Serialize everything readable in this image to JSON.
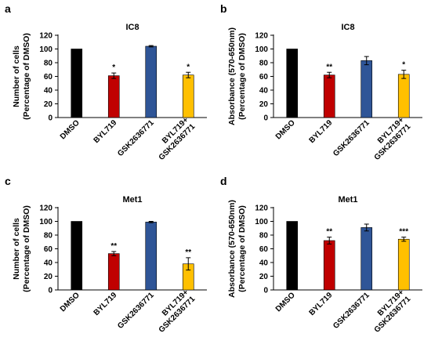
{
  "colors": {
    "dmso": "#000000",
    "byl": "#c00000",
    "gsk": "#2f5597",
    "combo": "#ffc000"
  },
  "chart_data": [
    {
      "panel_label": "a",
      "type": "bar",
      "title": "IC8",
      "ylabel": [
        "Number of cells",
        "(Percentage of DMSO)"
      ],
      "ylim": [
        0,
        120
      ],
      "yticks": [
        "0",
        "20",
        "40",
        "60",
        "80",
        "100",
        "120"
      ],
      "categories": [
        [
          "DMSO"
        ],
        [
          "BYL719"
        ],
        [
          "GSK2636771"
        ],
        [
          "BYL719+",
          "GSK2636771"
        ]
      ],
      "values": [
        100,
        61,
        104,
        62
      ],
      "errors": [
        0,
        4,
        1,
        4
      ],
      "significance": [
        "",
        "*",
        "",
        "*"
      ]
    },
    {
      "panel_label": "b",
      "type": "bar",
      "title": "IC8",
      "ylabel": [
        "Absorbance (570-650nm)",
        "(Percentage of DMSO)"
      ],
      "ylim": [
        0,
        120
      ],
      "yticks": [
        "0",
        "20",
        "40",
        "60",
        "80",
        "100",
        "120"
      ],
      "categories": [
        [
          "DMSO"
        ],
        [
          "BYL719"
        ],
        [
          "GSK2636771"
        ],
        [
          "BYL719+",
          "GSK2636771"
        ]
      ],
      "values": [
        100,
        62,
        83,
        63
      ],
      "errors": [
        0,
        4,
        6,
        6
      ],
      "significance": [
        "",
        "**",
        "",
        "*"
      ]
    },
    {
      "panel_label": "c",
      "type": "bar",
      "title": "Met1",
      "ylabel": [
        "Number of cells",
        "(Percentage of DMSO)"
      ],
      "ylim": [
        0,
        120
      ],
      "yticks": [
        "0",
        "20",
        "40",
        "60",
        "80",
        "100",
        "120"
      ],
      "categories": [
        [
          "DMSO"
        ],
        [
          "BYL719"
        ],
        [
          "GSK2636771"
        ],
        [
          "BYL719+",
          "GSK2636771"
        ]
      ],
      "values": [
        100,
        53,
        99,
        38
      ],
      "errors": [
        0,
        3,
        1,
        9
      ],
      "significance": [
        "",
        "**",
        "",
        "**"
      ]
    },
    {
      "panel_label": "d",
      "type": "bar",
      "title": "Met1",
      "ylabel": [
        "Absorbance (570-650nm)",
        "(Percentage of DMSO)"
      ],
      "ylim": [
        0,
        120
      ],
      "yticks": [
        "0",
        "20",
        "40",
        "60",
        "80",
        "100",
        "120"
      ],
      "categories": [
        [
          "DMSO"
        ],
        [
          "BYL719"
        ],
        [
          "GSK2636771"
        ],
        [
          "BYL719+",
          "GSK2636771"
        ]
      ],
      "values": [
        100,
        72,
        91,
        74
      ],
      "errors": [
        0,
        5,
        5,
        3
      ],
      "significance": [
        "",
        "**",
        "",
        "***"
      ]
    }
  ]
}
